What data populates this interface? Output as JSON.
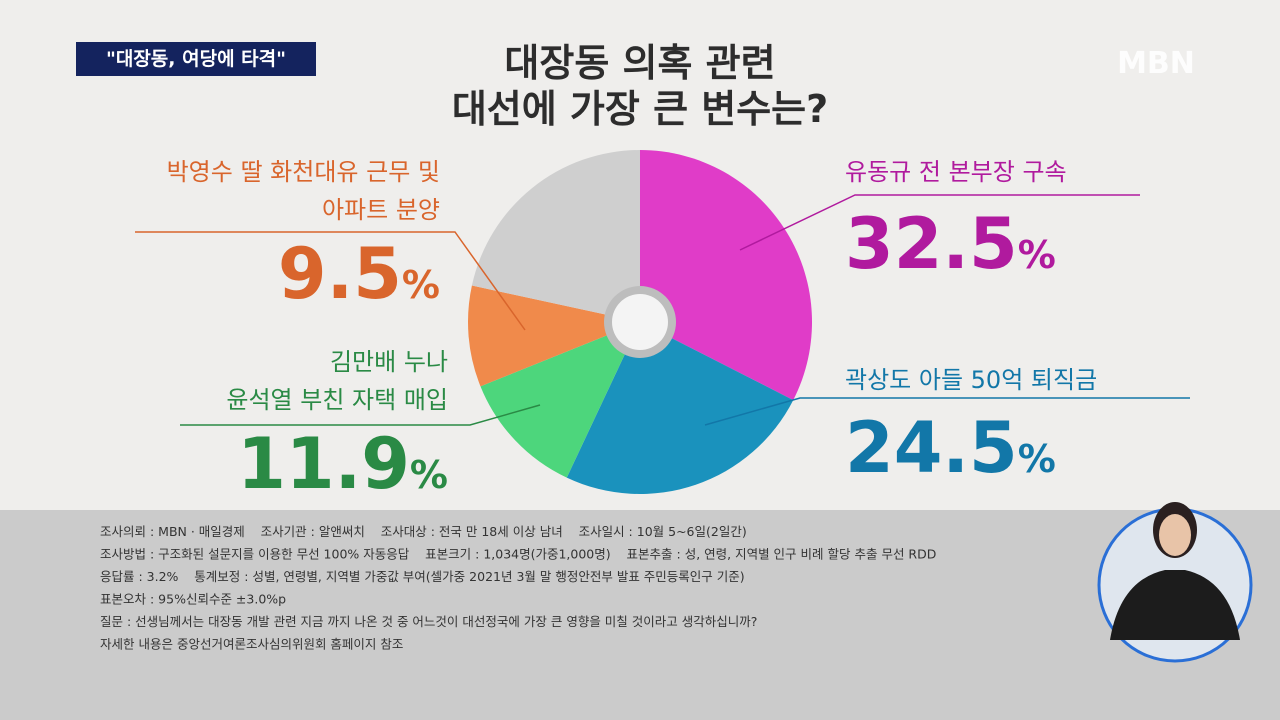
{
  "header": {
    "tag": "\"대장동, 여당에 타격\"",
    "logo": "MBN"
  },
  "chart_data": {
    "type": "donut",
    "title": [
      "대장동 의혹 관련",
      "대선에 가장 큰 변수는?"
    ],
    "categories": [
      "유동규 전 본부장 구속",
      "곽상도 아들 50억 퇴직금",
      "김만배 누나\n윤석열 부친 자택 매입",
      "박영수 딸 화천대유 근무 및\n아파트 분양",
      null
    ],
    "values": [
      32.5,
      24.5,
      11.9,
      9.5,
      21.6
    ],
    "value_labels": [
      "32.5%",
      "24.5%",
      "11.9%",
      "9.5%",
      null
    ],
    "colors": [
      "#e03cc8",
      "#1a92bd",
      "#4dd67c",
      "#f08a4b",
      "#cfcfcf"
    ],
    "label_colors": [
      "#b01a9e",
      "#1277a8",
      "#2a8a45",
      "#d9652c",
      null
    ]
  },
  "footer": {
    "lines": [
      "조사의뢰 : MBN · 매일경제    조사기관 : 알앤써치    조사대상 : 전국 만 18세 이상 남녀    조사일시 : 10월 5~6일(2일간)",
      "조사방법 : 구조화된 설문지를 이용한 무선 100% 자동응답    표본크기 : 1,034명(가중1,000명)    표본추출 : 성, 연령, 지역별 인구 비례 할당 추출 무선 RDD",
      "응답률 : 3.2%    통계보정 : 성별, 연령별, 지역별 가중값 부여(셀가중 2021년 3월 말 행정안전부 발표 주민등록인구 기준)",
      "표본오차 : 95%신뢰수준 ±3.0%p",
      "질문 : 선생님께서는 대장동 개발 관련 지금 까지 나온 것 중 어느것이 대선정국에 가장 큰 영향을 미칠 것이라고 생각하십니까?",
      "자세한 내용은 중앙선거여론조사심의위원회 홈페이지 참조"
    ]
  }
}
